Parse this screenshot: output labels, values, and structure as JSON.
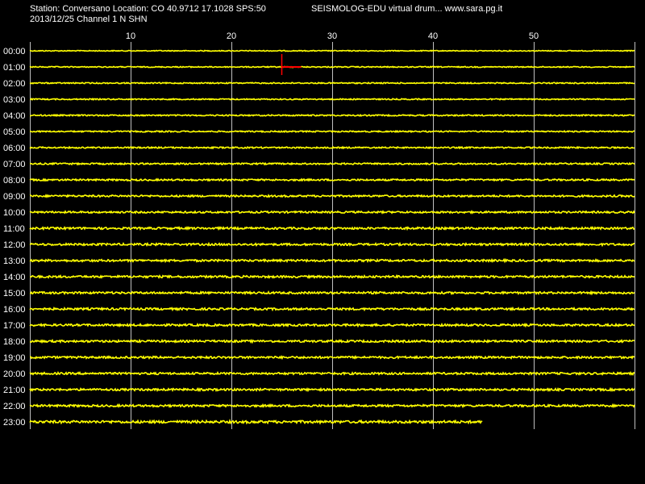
{
  "header": {
    "station_line": "Station: Conversano Location: CO 40.9712 17.1028 SPS:50",
    "program_line": "SEISMOLOG-EDU virtual drum... www.sara.pg.it",
    "date_line": "2013/12/25  Channel 1 N SHN"
  },
  "chart_data": {
    "type": "line",
    "title": "",
    "x_tick_labels": [
      "10",
      "20",
      "30",
      "40",
      "50"
    ],
    "x_ticks": [
      10,
      20,
      30,
      40,
      50
    ],
    "xlim": [
      0,
      60
    ],
    "xlabel": "",
    "ylabel": "",
    "grid": true,
    "rows": [
      "00:00",
      "01:00",
      "02:00",
      "03:00",
      "04:00",
      "05:00",
      "06:00",
      "07:00",
      "08:00",
      "09:00",
      "10:00",
      "11:00",
      "12:00",
      "13:00",
      "14:00",
      "15:00",
      "16:00",
      "17:00",
      "18:00",
      "19:00",
      "20:00",
      "21:00",
      "22:00",
      "23:00"
    ],
    "row_amplitude": [
      0.35,
      0.4,
      0.45,
      0.45,
      0.5,
      0.5,
      0.55,
      0.6,
      0.65,
      0.7,
      0.7,
      0.8,
      0.8,
      0.8,
      0.8,
      0.8,
      0.8,
      0.8,
      0.8,
      0.8,
      0.8,
      0.8,
      0.8,
      1.0
    ],
    "last_row_end_minute": 44.9,
    "marker": {
      "row": "01:00",
      "minute": 25.0,
      "color": "#ff0000"
    },
    "trace_color": "#ffff00",
    "grid_color": "#c0c0c0"
  }
}
